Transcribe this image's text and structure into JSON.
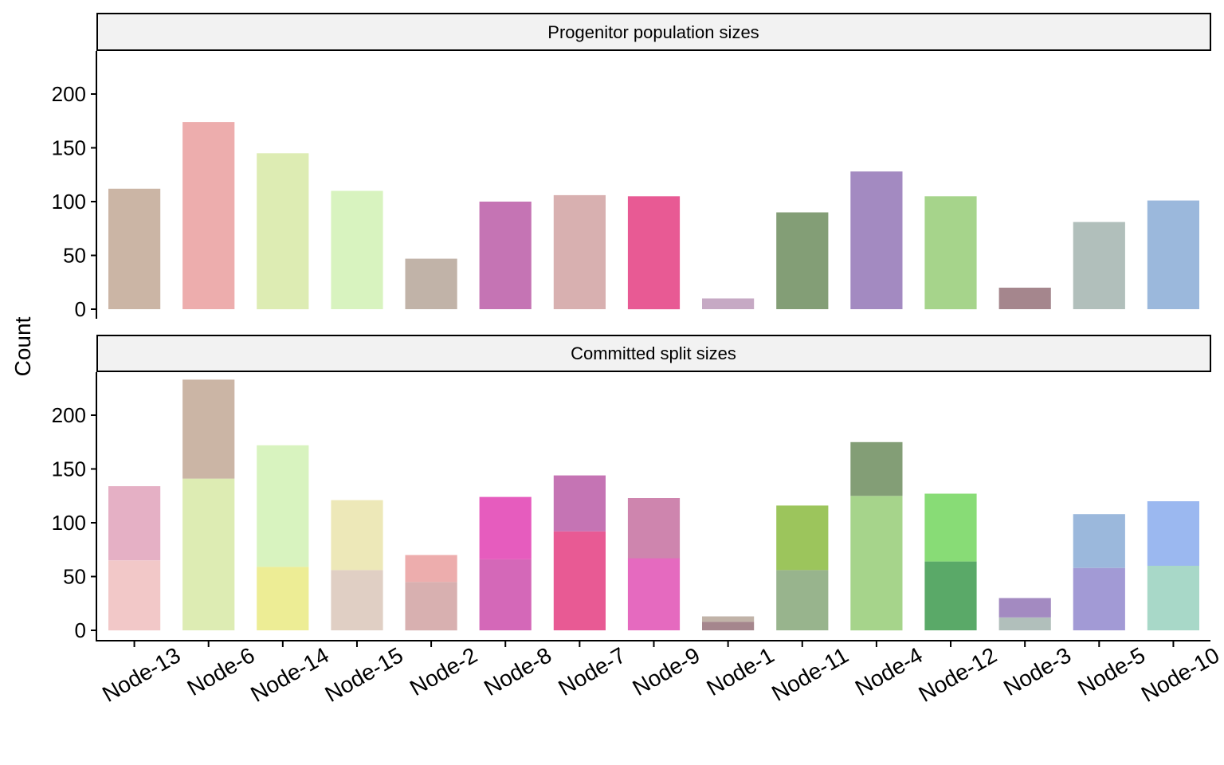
{
  "chart_data": {
    "type": "bar",
    "stacked": true,
    "ylabel": "Count",
    "ylim": [
      0,
      240
    ],
    "yticks": [
      0,
      50,
      100,
      150,
      200
    ],
    "grid": false,
    "categories": [
      "Node-13",
      "Node-6",
      "Node-14",
      "Node-15",
      "Node-2",
      "Node-8",
      "Node-7",
      "Node-9",
      "Node-1",
      "Node-11",
      "Node-4",
      "Node-12",
      "Node-3",
      "Node-5",
      "Node-10"
    ],
    "panels": [
      {
        "title": "Progenitor population sizes",
        "bars": [
          [
            {
              "value": 112,
              "color": "#cbb5a5"
            }
          ],
          [
            {
              "value": 174,
              "color": "#edadad"
            }
          ],
          [
            {
              "value": 145,
              "color": "#ddecb3"
            }
          ],
          [
            {
              "value": 110,
              "color": "#d8f3bf"
            }
          ],
          [
            {
              "value": 47,
              "color": "#c1b3a8"
            }
          ],
          [
            {
              "value": 100,
              "color": "#c574b4"
            }
          ],
          [
            {
              "value": 106,
              "color": "#d8b0b0"
            }
          ],
          [
            {
              "value": 105,
              "color": "#e85a94"
            }
          ],
          [
            {
              "value": 10,
              "color": "#c6a9c4"
            }
          ],
          [
            {
              "value": 90,
              "color": "#839e76"
            }
          ],
          [
            {
              "value": 128,
              "color": "#a38ac1"
            }
          ],
          [
            {
              "value": 105,
              "color": "#a6d48b"
            }
          ],
          [
            {
              "value": 20,
              "color": "#a5868d"
            }
          ],
          [
            {
              "value": 81,
              "color": "#b1bfbb"
            }
          ],
          [
            {
              "value": 101,
              "color": "#9bb8dc"
            }
          ]
        ]
      },
      {
        "title": "Committed split sizes",
        "bars": [
          [
            {
              "value": 65,
              "color": "#f2c8c8"
            },
            {
              "value": 69,
              "color": "#e5b0c5"
            }
          ],
          [
            {
              "value": 141,
              "color": "#ddecb3"
            },
            {
              "value": 92,
              "color": "#cbb5a5"
            }
          ],
          [
            {
              "value": 59,
              "color": "#eded95"
            },
            {
              "value": 113,
              "color": "#d8f3bf"
            }
          ],
          [
            {
              "value": 56,
              "color": "#e0cfc4"
            },
            {
              "value": 65,
              "color": "#ede8b8"
            }
          ],
          [
            {
              "value": 45,
              "color": "#d8b0b0"
            },
            {
              "value": 25,
              "color": "#edadad"
            }
          ],
          [
            {
              "value": 66,
              "color": "#d468b8"
            },
            {
              "value": 58,
              "color": "#e65cbe"
            }
          ],
          [
            {
              "value": 92,
              "color": "#e85a94"
            },
            {
              "value": 52,
              "color": "#c574b4"
            }
          ],
          [
            {
              "value": 67,
              "color": "#e56abf"
            },
            {
              "value": 56,
              "color": "#ce85ae"
            }
          ],
          [
            {
              "value": 8,
              "color": "#a5868d"
            },
            {
              "value": 5,
              "color": "#c1b3a8"
            }
          ],
          [
            {
              "value": 56,
              "color": "#98b48d"
            },
            {
              "value": 60,
              "color": "#9cc55c"
            }
          ],
          [
            {
              "value": 125,
              "color": "#a6d48b"
            },
            {
              "value": 50,
              "color": "#839e76"
            }
          ],
          [
            {
              "value": 64,
              "color": "#5aa968"
            },
            {
              "value": 63,
              "color": "#88dc76"
            }
          ],
          [
            {
              "value": 12,
              "color": "#b1bfbb"
            },
            {
              "value": 18,
              "color": "#a38ac1"
            }
          ],
          [
            {
              "value": 58,
              "color": "#a29ad5"
            },
            {
              "value": 50,
              "color": "#9bb8dc"
            }
          ],
          [
            {
              "value": 60,
              "color": "#a8d8c8"
            },
            {
              "value": 60,
              "color": "#9bb8f0"
            }
          ]
        ]
      }
    ]
  }
}
